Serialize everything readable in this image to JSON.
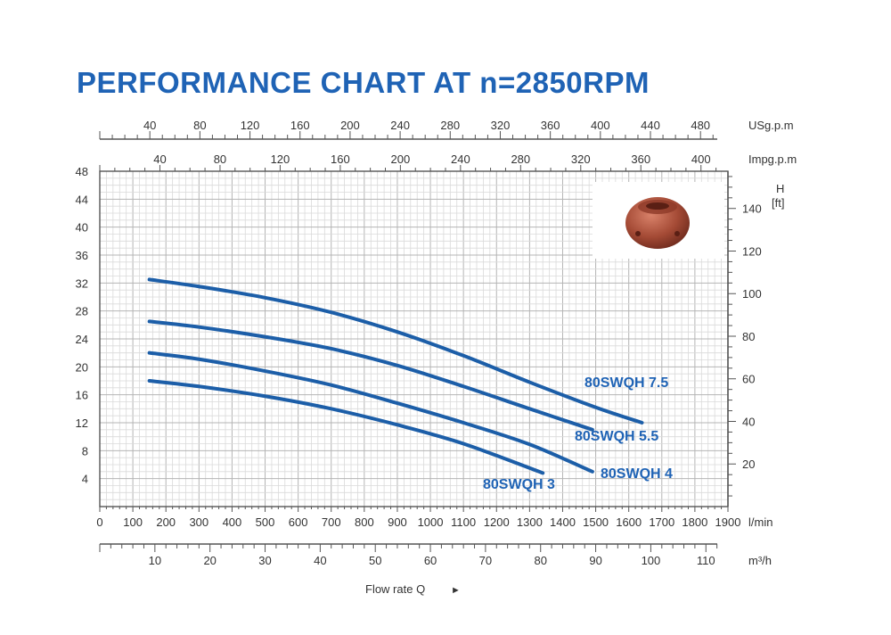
{
  "title": "PERFORMANCE CHART AT n=2850RPM",
  "chart_data": {
    "type": "line",
    "title": "PERFORMANCE CHART AT n=2850RPM",
    "xlabel": "Flow rate Q",
    "x_unit": "l/min",
    "y_unit": "m",
    "xlim": [
      0,
      1900
    ],
    "ylim": [
      0,
      48
    ],
    "grid": true,
    "x_ticks": [
      0,
      100,
      200,
      300,
      400,
      500,
      600,
      700,
      800,
      900,
      1000,
      1100,
      1200,
      1300,
      1400,
      1500,
      1600,
      1700,
      1800,
      1900
    ],
    "y_ticks": [
      4,
      8,
      12,
      16,
      20,
      24,
      28,
      32,
      36,
      40,
      44,
      48
    ],
    "ft_axis": {
      "unit_line1": "H",
      "unit_line2": "[ft]",
      "ticks": [
        20,
        40,
        60,
        80,
        100,
        120,
        140
      ]
    },
    "usgpm_axis": {
      "unit": "USg.p.m",
      "ticks": [
        40,
        80,
        120,
        160,
        200,
        240,
        280,
        320,
        360,
        400,
        440,
        480
      ]
    },
    "impgpm_axis": {
      "unit": "Impg.p.m",
      "ticks": [
        40,
        80,
        120,
        160,
        200,
        240,
        280,
        320,
        360,
        400
      ]
    },
    "m3h_axis": {
      "unit": "m³/h",
      "ticks": [
        10,
        20,
        30,
        40,
        50,
        60,
        70,
        80,
        90,
        100,
        110
      ]
    },
    "series": [
      {
        "name": "80SWQH 7.5",
        "x": [
          150,
          300,
          500,
          700,
          900,
          1100,
          1300,
          1500,
          1640
        ],
        "values": [
          32.5,
          31.5,
          29.9,
          27.8,
          25.0,
          21.6,
          17.8,
          14.2,
          12.0
        ]
      },
      {
        "name": "80SWQH 5.5",
        "x": [
          150,
          300,
          500,
          700,
          900,
          1100,
          1300,
          1490
        ],
        "values": [
          26.5,
          25.7,
          24.3,
          22.6,
          20.2,
          17.2,
          14.0,
          11.0
        ]
      },
      {
        "name": "80SWQH 4",
        "x": [
          150,
          300,
          500,
          700,
          900,
          1100,
          1300,
          1490
        ],
        "values": [
          22.0,
          21.1,
          19.4,
          17.4,
          14.8,
          12.0,
          8.9,
          5.0
        ]
      },
      {
        "name": "80SWQH 3",
        "x": [
          150,
          300,
          500,
          700,
          900,
          1100,
          1340
        ],
        "values": [
          18.0,
          17.2,
          15.8,
          14.0,
          11.7,
          9.0,
          4.8
        ]
      }
    ]
  },
  "footer": {
    "label": "Flow rate Q",
    "arrow": "►"
  },
  "photo": {
    "icon": "pump-impeller-photo"
  }
}
